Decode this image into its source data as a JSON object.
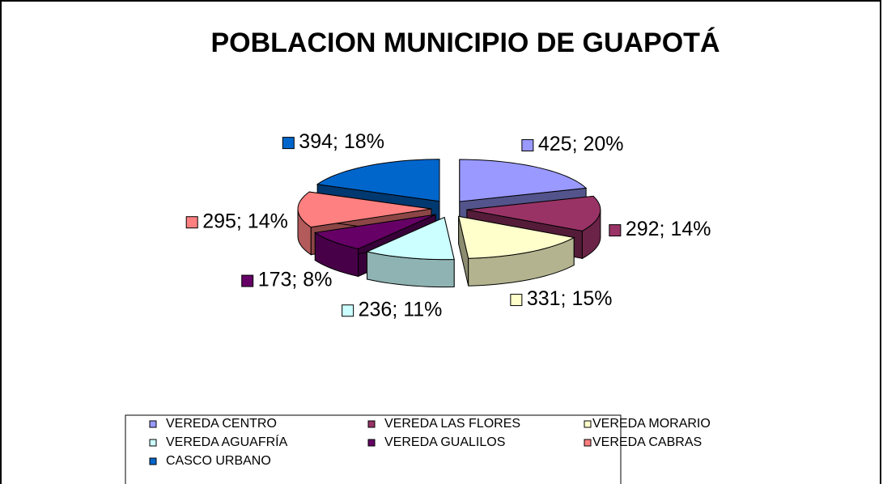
{
  "chart_data": {
    "type": "pie3d",
    "title": "POBLACION MUNICIPIO DE GUAPOTÁ",
    "categories": [
      "VEREDA CENTRO",
      "VEREDA LAS FLORES",
      "VEREDA MORARIO",
      "VEREDA AGUAFRÍA",
      "VEREDA GUALILOS",
      "VEREDA CABRAS",
      "CASCO URBANO"
    ],
    "values": [
      425,
      292,
      331,
      236,
      173,
      295,
      394
    ],
    "value_labels": [
      "425; 20%",
      "292; 14%",
      "331; 15%",
      "236; 11%",
      "173; 8%",
      "295; 14%",
      "394; 18%"
    ],
    "colors": [
      "#9999ff",
      "#993366",
      "#ffffcc",
      "#ccffff",
      "#660066",
      "#ff8080",
      "#0066cc"
    ],
    "legend": "bottom"
  }
}
